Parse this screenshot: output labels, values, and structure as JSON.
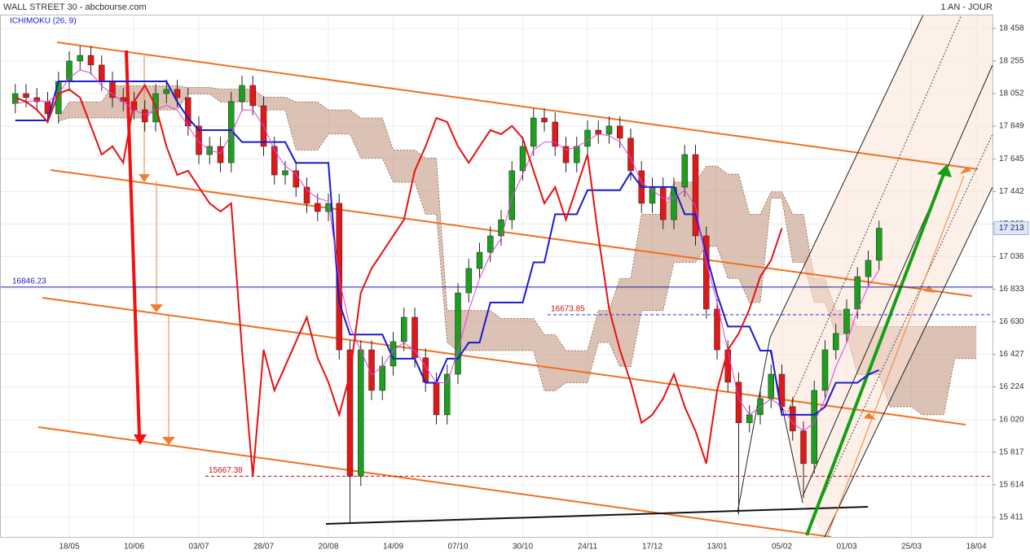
{
  "header": {
    "title": "WALL STREET 30 - abcbourse.com",
    "period": "1 AN - JOUR"
  },
  "chart_data": {
    "type": "candlestick",
    "indicator": "ICHIMOKU (26, 9)",
    "categories": [
      null,
      null,
      null,
      null,
      null,
      "18/05",
      null,
      null,
      null,
      null,
      null,
      "10/06",
      null,
      null,
      null,
      null,
      null,
      "03/07",
      null,
      null,
      null,
      null,
      null,
      "28/07",
      null,
      null,
      null,
      null,
      null,
      "20/08",
      null,
      null,
      null,
      null,
      null,
      "14/09",
      null,
      null,
      null,
      null,
      null,
      "07/10",
      null,
      null,
      null,
      null,
      null,
      "30/10",
      null,
      null,
      null,
      null,
      null,
      "24/11",
      null,
      null,
      null,
      null,
      null,
      "17/12",
      null,
      null,
      null,
      null,
      null,
      "13/01",
      null,
      null,
      null,
      null,
      null,
      "05/02",
      null,
      null,
      null,
      null,
      null,
      "01/03",
      null,
      null,
      null,
      null,
      null,
      "25/03",
      null,
      null,
      null,
      null,
      null,
      "18/04",
      null
    ],
    "ylim": [
      15289,
      18544
    ],
    "yticks": [
      {
        "value": 15411,
        "label": "15 411"
      },
      {
        "value": 15614,
        "label": "15 614"
      },
      {
        "value": 15817,
        "label": "15 817"
      },
      {
        "value": 16020,
        "label": "16 020"
      },
      {
        "value": 16224,
        "label": "16 224"
      },
      {
        "value": 16427,
        "label": "16 427"
      },
      {
        "value": 16630,
        "label": "16 630"
      },
      {
        "value": 16833,
        "label": "16 833"
      },
      {
        "value": 17036,
        "label": "17 036"
      },
      {
        "value": 17239,
        "label": "17 239"
      },
      {
        "value": 17442,
        "label": "17 442"
      },
      {
        "value": 17645,
        "label": "17 645"
      },
      {
        "value": 17849,
        "label": "17 849"
      },
      {
        "value": 18052,
        "label": "18 052"
      },
      {
        "value": 18255,
        "label": "18 255"
      },
      {
        "value": 18458,
        "label": "18 458"
      }
    ],
    "grid": true,
    "up_color": "#1e9e1e",
    "down_color": "#e01818",
    "open": [
      17990,
      18052,
      18027,
      18002,
      17926,
      18128,
      18255,
      18290,
      18230,
      18128,
      18027,
      18002,
      17951,
      17875,
      18052,
      18078,
      18027,
      17850,
      17672,
      17723,
      17621,
      18002,
      18103,
      17976,
      17723,
      17545,
      17571,
      17469,
      17368,
      17317,
      17368,
      16455,
      15667,
      16455,
      16202,
      16354,
      16506,
      16658,
      16405,
      16253,
      16050,
      16303,
      16810,
      16962,
      17063,
      17165,
      17266,
      17571,
      17723,
      17900,
      17875,
      17723,
      17621,
      17723,
      17824,
      17799,
      17850,
      17774,
      17571,
      17368,
      17469,
      17266,
      17469,
      17672,
      17165,
      16709,
      16455,
      16253,
      16000,
      16050,
      16151,
      16303,
      16101,
      15949,
      15746,
      16202,
      16455,
      16557,
      16709,
      16911,
      17013,
      null,
      null,
      null,
      null,
      null,
      null,
      null,
      null,
      null,
      null
    ],
    "high": [
      18112,
      18112,
      18087,
      18062,
      18188,
      18315,
      18350,
      18350,
      18290,
      18188,
      18087,
      18062,
      18011,
      18112,
      18138,
      18138,
      18087,
      17910,
      17783,
      17783,
      18062,
      18163,
      18163,
      18036,
      17783,
      17631,
      17631,
      17529,
      17428,
      17428,
      17428,
      16515,
      16515,
      16515,
      16414,
      16566,
      16718,
      16718,
      16465,
      16313,
      16363,
      16870,
      17022,
      17123,
      17225,
      17326,
      17631,
      17783,
      17960,
      17960,
      17935,
      17783,
      17783,
      17884,
      17884,
      17910,
      17910,
      17834,
      17631,
      17529,
      17529,
      17529,
      17732,
      17732,
      17225,
      16769,
      16515,
      16313,
      16110,
      16211,
      16363,
      16363,
      16161,
      16009,
      16262,
      16515,
      16617,
      16769,
      16971,
      17073,
      17260,
      null,
      null,
      null,
      null,
      null,
      null,
      null,
      null,
      null,
      null
    ],
    "low": [
      17930,
      17967,
      17942,
      17866,
      17866,
      18068,
      18195,
      18170,
      18068,
      17967,
      17942,
      17891,
      17815,
      17815,
      17992,
      17967,
      17790,
      17612,
      17612,
      17561,
      17561,
      17942,
      17916,
      17663,
      17485,
      17485,
      17409,
      17308,
      17257,
      17257,
      16395,
      15370,
      15607,
      16142,
      16142,
      16294,
      16446,
      16345,
      16193,
      15990,
      15990,
      16243,
      16750,
      16902,
      17003,
      17105,
      17206,
      17511,
      17663,
      17815,
      17663,
      17561,
      17561,
      17663,
      17739,
      17739,
      17714,
      17511,
      17308,
      17308,
      17206,
      17206,
      17409,
      17105,
      16649,
      16395,
      16193,
      15430,
      15940,
      15990,
      16091,
      16041,
      15889,
      15530,
      15686,
      16142,
      16395,
      16497,
      16649,
      16851,
      16953,
      null,
      null,
      null,
      null,
      null,
      null,
      null,
      null,
      null,
      null
    ],
    "close": [
      18052,
      18027,
      18002,
      17926,
      18128,
      18255,
      18290,
      18230,
      18128,
      18027,
      18002,
      17951,
      17875,
      18052,
      18078,
      18027,
      17850,
      17672,
      17723,
      17621,
      18002,
      18103,
      17976,
      17723,
      17545,
      17571,
      17469,
      17368,
      17317,
      17368,
      16455,
      15667,
      16455,
      16202,
      16354,
      16506,
      16658,
      16405,
      16253,
      16050,
      16303,
      16810,
      16962,
      17063,
      17165,
      17266,
      17571,
      17723,
      17900,
      17875,
      17723,
      17621,
      17723,
      17824,
      17799,
      17850,
      17774,
      17571,
      17368,
      17469,
      17266,
      17469,
      17672,
      17165,
      16709,
      16455,
      16253,
      16000,
      16050,
      16151,
      16303,
      16101,
      15949,
      15746,
      16202,
      16455,
      16557,
      16709,
      16911,
      17013,
      17213,
      null,
      null,
      null,
      null,
      null,
      null,
      null,
      null,
      null,
      null
    ],
    "lines": [
      {
        "color": "#1a1ad0",
        "width": 2,
        "values": [
          17885,
          17885,
          17885,
          17885,
          18128,
          18128,
          18128,
          18128,
          18128,
          18128,
          18128,
          18128,
          18128,
          18128,
          18128,
          18000,
          17900,
          17824,
          17824,
          17824,
          17824,
          17750,
          17750,
          17750,
          17750,
          17750,
          17620,
          17620,
          17620,
          17620,
          16750,
          16550,
          16550,
          16550,
          16550,
          16400,
          16400,
          16400,
          16250,
          16250,
          16400,
          16400,
          16500,
          16500,
          16750,
          16750,
          16750,
          16750,
          17000,
          17000,
          17300,
          17300,
          17300,
          17450,
          17450,
          17450,
          17450,
          17560,
          17470,
          17470,
          17470,
          17470,
          17300,
          17300,
          17050,
          16800,
          16600,
          16600,
          16600,
          16450,
          16450,
          16050,
          16050,
          16050,
          16050,
          16100,
          16250,
          16250,
          16250,
          16300,
          16329,
          null,
          null,
          null,
          null,
          null,
          null,
          null,
          null,
          null,
          null
        ]
      },
      {
        "color": "#e040e0",
        "width": 1,
        "values": [
          17990,
          18000,
          18010,
          18000,
          18050,
          18150,
          18200,
          18180,
          18100,
          18050,
          18000,
          17950,
          17920,
          17950,
          17980,
          17950,
          17850,
          17750,
          17700,
          17680,
          17800,
          17950,
          17950,
          17850,
          17700,
          17600,
          17550,
          17450,
          17400,
          17380,
          16900,
          16600,
          16450,
          16300,
          16350,
          16450,
          16500,
          16450,
          16350,
          16250,
          16250,
          16450,
          16700,
          16900,
          17050,
          17150,
          17400,
          17550,
          17700,
          17750,
          17750,
          17700,
          17720,
          17760,
          17800,
          17790,
          17750,
          17650,
          17500,
          17450,
          17400,
          17400,
          17450,
          17350,
          17000,
          16750,
          16450,
          16150,
          16050,
          16100,
          16150,
          16100,
          16000,
          15950,
          16000,
          16150,
          16350,
          16500,
          16700,
          16850,
          16950,
          null,
          null,
          null,
          null,
          null,
          null,
          null,
          null,
          null,
          null
        ]
      },
      {
        "color": "#e81010",
        "width": 2,
        "values": [
          18027,
          18002,
          17951,
          17875,
          18052,
          18078,
          18027,
          17850,
          17672,
          17723,
          17621,
          18002,
          18103,
          17976,
          17723,
          17545,
          17571,
          17469,
          17368,
          17317,
          17368,
          16455,
          15667,
          16455,
          16202,
          16354,
          16506,
          16658,
          16405,
          16253,
          16050,
          16303,
          16810,
          16962,
          17063,
          17165,
          17266,
          17571,
          17723,
          17900,
          17875,
          17723,
          17621,
          17723,
          17824,
          17799,
          17850,
          17774,
          17571,
          17368,
          17469,
          17266,
          17469,
          17672,
          17165,
          16709,
          16455,
          16253,
          16000,
          16050,
          16151,
          16303,
          16101,
          15949,
          15746,
          16202,
          16455,
          16557,
          16709,
          16911,
          17013,
          17213,
          null,
          null,
          null,
          null,
          null,
          null,
          null,
          null,
          null,
          null,
          null,
          null,
          null,
          null,
          null,
          null,
          null,
          null,
          null
        ]
      }
    ],
    "cloud": {
      "color": "#c49a82",
      "edge_color": "#8a5a40",
      "span_a": [
        null,
        null,
        null,
        null,
        17900,
        18000,
        18000,
        18000,
        18000,
        18100,
        18100,
        18100,
        18100,
        18100,
        18100,
        18100,
        18090,
        18090,
        18090,
        18080,
        18080,
        18080,
        18080,
        18030,
        18030,
        18030,
        18000,
        18000,
        18000,
        17950,
        17950,
        17950,
        17900,
        17900,
        17900,
        17700,
        17700,
        17700,
        17650,
        17650,
        16700,
        16700,
        16700,
        16700,
        16700,
        16650,
        16650,
        16650,
        16650,
        16550,
        16550,
        16450,
        16450,
        16450,
        16700,
        16700,
        16900,
        16900,
        17300,
        17300,
        17300,
        17500,
        17500,
        17500,
        17600,
        17600,
        17550,
        17550,
        17300,
        17300,
        17440,
        17440,
        17300,
        17300,
        16900,
        16900,
        16700,
        16700,
        16600,
        16600,
        16600,
        16600,
        16600,
        16600,
        16600,
        16600,
        16600,
        16600,
        16600,
        16600,
        null
      ],
      "span_b": [
        null,
        null,
        null,
        null,
        17880,
        17900,
        17900,
        17900,
        17900,
        17900,
        17900,
        17900,
        17900,
        17950,
        17950,
        17950,
        18050,
        18050,
        18050,
        18000,
        18000,
        18000,
        18000,
        17950,
        17950,
        17950,
        17700,
        17700,
        17700,
        17800,
        17800,
        17800,
        17650,
        17650,
        17650,
        17500,
        17500,
        17500,
        17300,
        17300,
        16500,
        16450,
        16450,
        16450,
        16450,
        16450,
        16450,
        16450,
        16450,
        16200,
        16200,
        16250,
        16250,
        16250,
        16500,
        16500,
        16350,
        16350,
        16700,
        16700,
        16700,
        17000,
        17000,
        17000,
        17100,
        17100,
        16900,
        16900,
        16750,
        16750,
        17400,
        17400,
        17000,
        17000,
        16750,
        16750,
        16550,
        16550,
        16300,
        16300,
        16300,
        16100,
        16100,
        16100,
        16050,
        16050,
        16050,
        16400,
        16400,
        16400,
        null
      ]
    },
    "price_lines": [
      {
        "value": 16846.23,
        "color": "#1a1a9a",
        "dashed": false,
        "label_color": "#1a1ad0"
      },
      {
        "value": 16673.85,
        "color": "#2a2ae0",
        "dashed": true,
        "label_color": "#d01010"
      },
      {
        "value": 15667.38,
        "color": "#c00000",
        "dashed": true,
        "label_color": "#d01010"
      }
    ],
    "last_price": {
      "value": 17213,
      "label": "17 213"
    }
  }
}
